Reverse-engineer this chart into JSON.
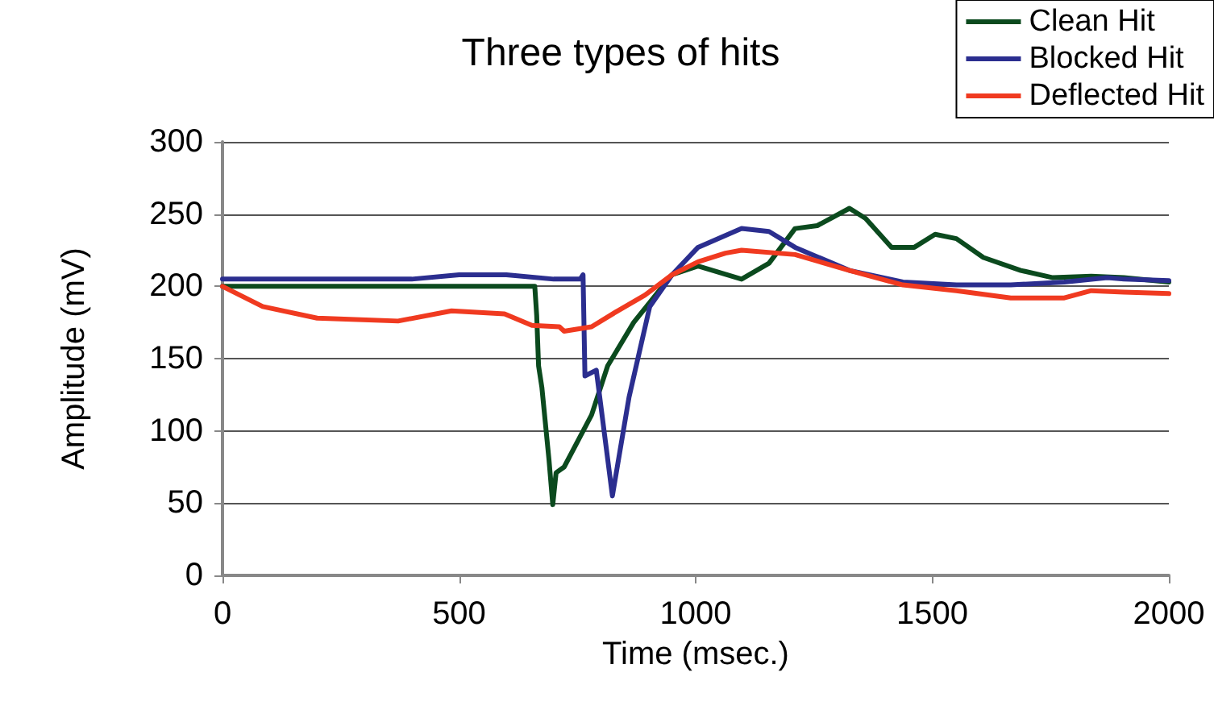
{
  "chart_data": {
    "type": "line",
    "title": "Three types of hits",
    "xlabel": "Time (msec.)",
    "ylabel": "Amplitude (mV)",
    "xlim": [
      0,
      2000
    ],
    "xticks": [
      0,
      500,
      1000,
      1500,
      2000
    ],
    "ylim": [
      0,
      300
    ],
    "yticks": [
      0,
      50,
      100,
      150,
      200,
      250,
      300
    ],
    "grid": "y",
    "legend": "top right",
    "marker": "none",
    "line_style": "solid",
    "series": [
      {
        "name": "Clean Hit",
        "color": "#0b4a1e",
        "x": [
          0,
          200,
          400,
          600,
          660,
          664,
          668,
          675,
          690,
          698,
          705,
          722,
          780,
          814,
          869,
          950,
          1005,
          1097,
          1155,
          1210,
          1257,
          1325,
          1359,
          1414,
          1462,
          1506,
          1551,
          1608,
          1687,
          1755,
          1836,
          1905,
          2000
        ],
        "values": [
          200,
          200,
          200,
          200,
          200,
          180,
          145,
          130,
          80,
          49,
          71,
          75,
          111,
          145,
          175,
          208,
          214,
          205,
          216,
          240,
          242,
          254,
          247,
          227,
          227,
          236,
          233,
          220,
          211,
          206,
          207,
          206,
          203
        ]
      },
      {
        "name": "Blocked Hit",
        "color": "#2b2e8f",
        "x": [
          0,
          200,
          400,
          500,
          600,
          700,
          756,
          762,
          766,
          790,
          824,
          859,
          882,
          903,
          950,
          1005,
          1097,
          1155,
          1210,
          1325,
          1438,
          1551,
          1666,
          1779,
          1870,
          1905,
          2000
        ],
        "values": [
          205,
          205,
          205,
          208,
          208,
          205,
          205,
          208,
          138,
          142,
          55,
          123,
          156,
          186,
          208,
          227,
          240,
          238,
          227,
          211,
          203,
          201,
          201,
          203,
          206,
          205,
          204
        ]
      },
      {
        "name": "Deflected Hit",
        "color": "#f03a20",
        "x": [
          0,
          85,
          200,
          371,
          484,
          596,
          654,
          712,
          722,
          780,
          835,
          893,
          950,
          1005,
          1063,
          1097,
          1210,
          1325,
          1438,
          1551,
          1666,
          1779,
          1836,
          1905,
          2000
        ],
        "values": [
          200,
          186,
          178,
          176,
          183,
          181,
          173,
          172,
          169,
          172,
          183,
          194,
          208,
          217,
          223,
          225,
          222,
          211,
          201,
          197,
          192,
          192,
          197,
          196,
          195
        ]
      }
    ]
  }
}
